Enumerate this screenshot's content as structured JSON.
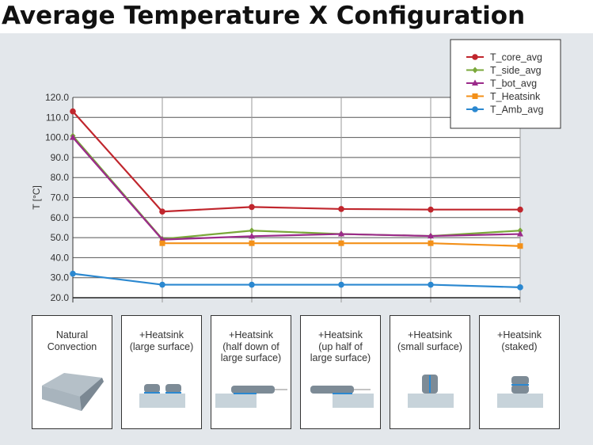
{
  "title": "Average Temperature X Configuration",
  "chart_data": {
    "type": "line",
    "title": "Average Temperature X Configuration",
    "xlabel": "",
    "ylabel": "T [°C]",
    "ylim": [
      20,
      120
    ],
    "yticks": [
      "20.0",
      "30.0",
      "40.0",
      "50.0",
      "60.0",
      "70.0",
      "80.0",
      "90.0",
      "100.0",
      "110.0",
      "120.0"
    ],
    "grid": true,
    "legend_position": "top-right",
    "categories": [
      "Natural Convection",
      "+Heatsink (large surface)",
      "+Heatsink (half down of large surface)",
      "+Heatsink (up half of large surface)",
      "+Heatsink (small surface)",
      "+Heatsink (staked)"
    ],
    "series": [
      {
        "name": "T_core_avg",
        "color": "#c0262d",
        "marker": "circle",
        "values": [
          113,
          63,
          65.3,
          64.3,
          64,
          64
        ]
      },
      {
        "name": "T_side_avg",
        "color": "#7aa83a",
        "marker": "diamond",
        "values": [
          100.8,
          49.3,
          53.5,
          51.8,
          50.8,
          53.5
        ]
      },
      {
        "name": "T_bot_avg",
        "color": "#9b2a8a",
        "marker": "triangle",
        "values": [
          100,
          49,
          50.7,
          51.8,
          50.8,
          51.8
        ]
      },
      {
        "name": "T_Heatsink",
        "color": "#f39019",
        "marker": "square",
        "values": [
          null,
          47.2,
          47.2,
          47.2,
          47.2,
          45.8
        ]
      },
      {
        "name": "T_Amb_avg",
        "color": "#2b88d0",
        "marker": "circle",
        "values": [
          32,
          26.5,
          26.5,
          26.5,
          26.5,
          25.2
        ]
      }
    ]
  },
  "panels": [
    {
      "lines": [
        "Natural",
        "Convection"
      ]
    },
    {
      "lines": [
        "+Heatsink",
        "(large surface)"
      ]
    },
    {
      "lines": [
        "+Heatsink",
        "(half down of",
        "large surface)"
      ]
    },
    {
      "lines": [
        "+Heatsink",
        "(up half of",
        "large surface)"
      ]
    },
    {
      "lines": [
        "+Heatsink",
        "(small surface)"
      ]
    },
    {
      "lines": [
        "+Heatsink",
        "(staked)"
      ]
    }
  ]
}
